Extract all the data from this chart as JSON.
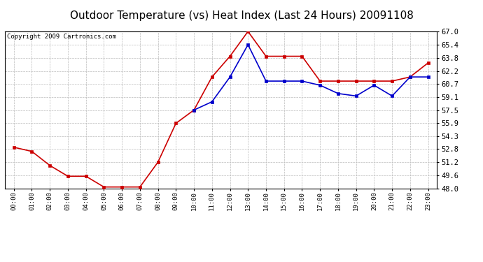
{
  "title": "Outdoor Temperature (vs) Heat Index (Last 24 Hours) 20091108",
  "copyright": "Copyright 2009 Cartronics.com",
  "x_labels": [
    "00:00",
    "01:00",
    "02:00",
    "03:00",
    "04:00",
    "05:00",
    "06:00",
    "07:00",
    "08:00",
    "09:00",
    "10:00",
    "11:00",
    "12:00",
    "13:00",
    "14:00",
    "15:00",
    "16:00",
    "17:00",
    "18:00",
    "19:00",
    "20:00",
    "21:00",
    "22:00",
    "23:00"
  ],
  "red_data": [
    53.0,
    52.5,
    50.8,
    49.5,
    49.5,
    48.2,
    48.2,
    48.2,
    51.2,
    55.9,
    57.5,
    61.5,
    64.0,
    67.0,
    64.0,
    64.0,
    64.0,
    61.0,
    61.0,
    61.0,
    61.0,
    61.0,
    61.5,
    63.2
  ],
  "blue_data": [
    null,
    null,
    null,
    null,
    null,
    null,
    null,
    null,
    null,
    null,
    57.5,
    58.5,
    61.5,
    65.4,
    61.0,
    61.0,
    61.0,
    60.5,
    59.5,
    59.2,
    60.5,
    59.2,
    61.5,
    61.5
  ],
  "ylim_min": 48.0,
  "ylim_max": 67.0,
  "y_ticks": [
    48.0,
    49.6,
    51.2,
    52.8,
    54.3,
    55.9,
    57.5,
    59.1,
    60.7,
    62.2,
    63.8,
    65.4,
    67.0
  ],
  "red_color": "#cc0000",
  "blue_color": "#0000cc",
  "bg_color": "#ffffff",
  "grid_color": "#bbbbbb",
  "title_fontsize": 11,
  "copyright_fontsize": 6.5
}
